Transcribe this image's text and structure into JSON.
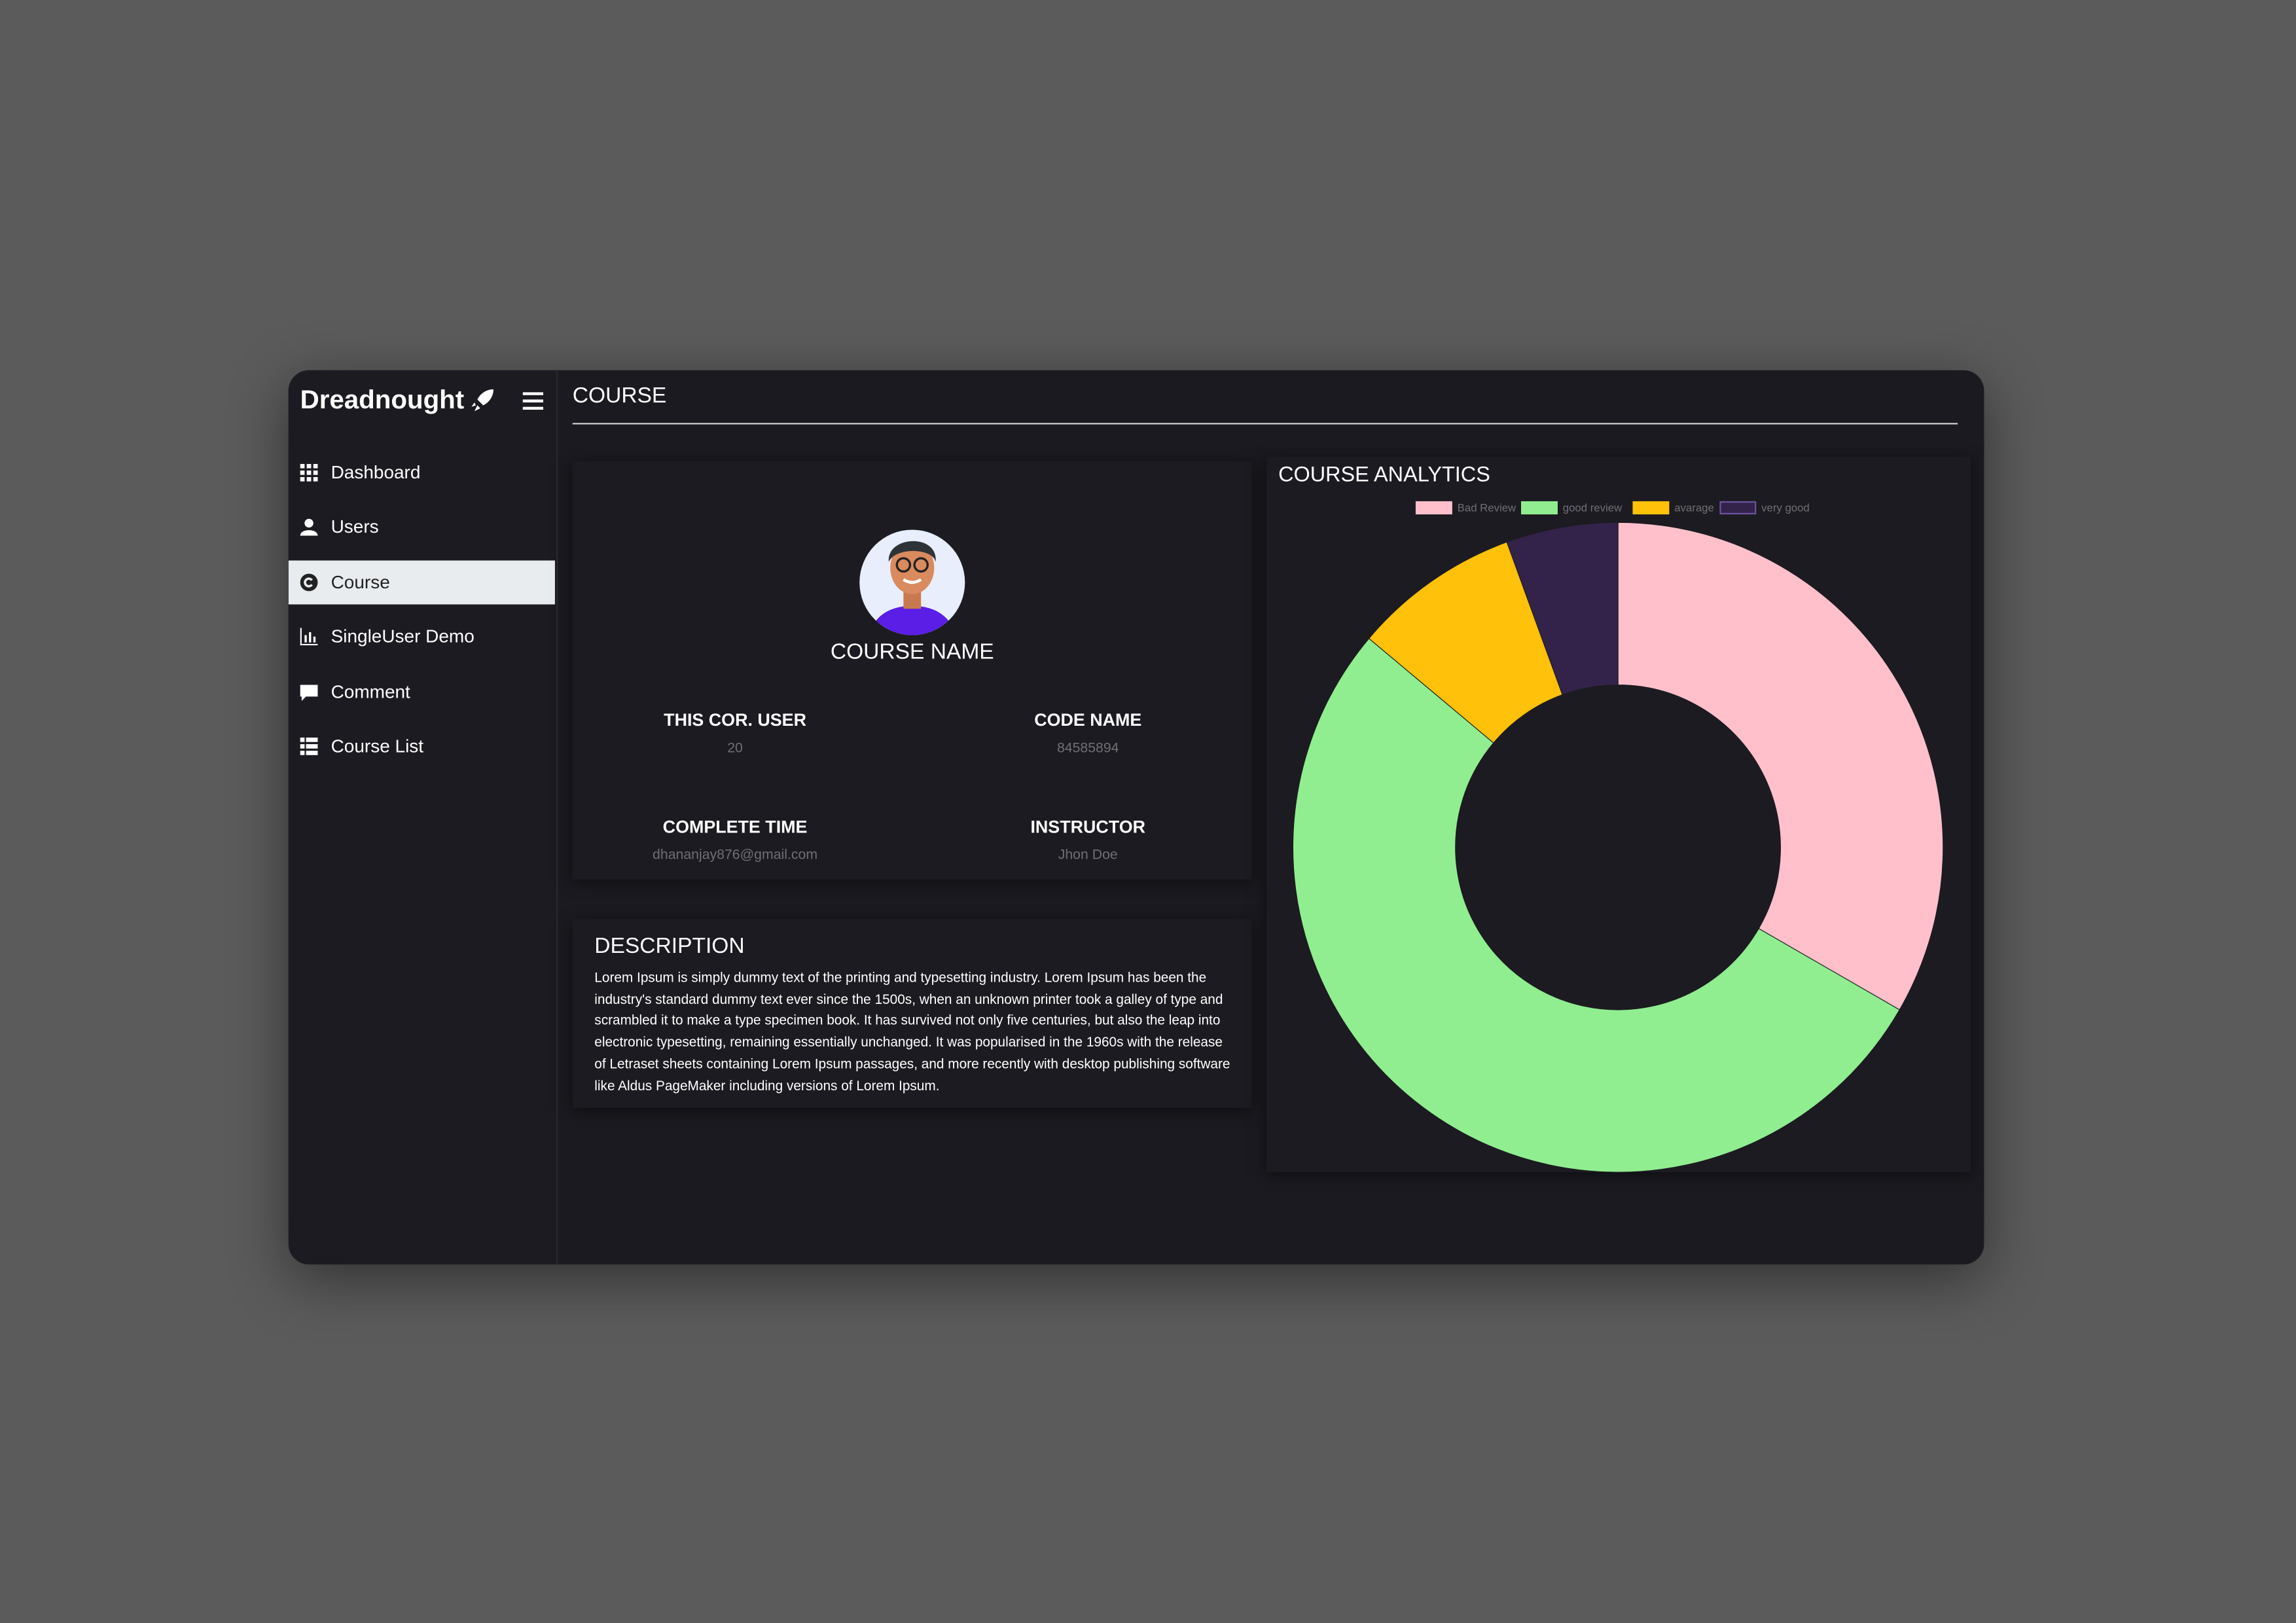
{
  "brand": "Dreadnought",
  "nav": {
    "items": [
      "Dashboard",
      "Users",
      "Course",
      "SingleUser Demo",
      "Comment",
      "Course List"
    ]
  },
  "header": {
    "title": "COURSE"
  },
  "course": {
    "name": "COURSE NAME",
    "fields": [
      {
        "label": "THIS COR. USER",
        "value": "20"
      },
      {
        "label": "CODE NAME",
        "value": "84585894"
      },
      {
        "label": "COMPLETE TIME",
        "value": "dhananjay876@gmail.com"
      },
      {
        "label": "INSTRUCTOR",
        "value": "Jhon Doe"
      }
    ]
  },
  "description": {
    "title": "DESCRIPTION",
    "text": "Lorem Ipsum is simply dummy text of the printing and typesetting industry. Lorem Ipsum has been the industry's standard dummy text ever since the 1500s, when an unknown printer took a galley of type and scrambled it to make a type specimen book. It has survived not only five centuries, but also the leap into electronic typesetting, remaining essentially unchanged. It was popularised in the 1960s with the release of Letraset sheets containing Lorem Ipsum passages, and more recently with desktop publishing software like Aldus PageMaker including versions of Lorem Ipsum."
  },
  "chart_data": {
    "type": "doughnut",
    "title": "COURSE ANALYTICS",
    "categories": [
      "Bad Review",
      "good review",
      "avarage",
      "very good"
    ],
    "values": [
      12,
      19,
      3,
      2
    ],
    "colors": [
      "#ffc0cb",
      "#90ee90",
      "#ffc10a",
      "#33234a"
    ]
  }
}
